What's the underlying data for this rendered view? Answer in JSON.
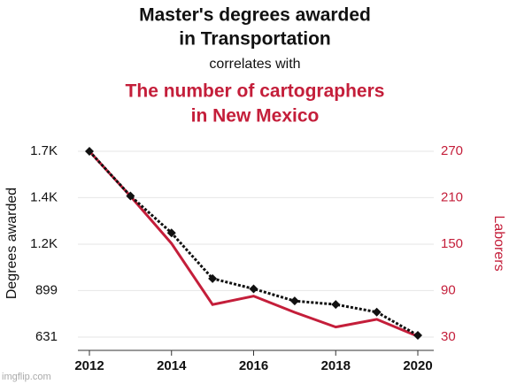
{
  "chart_data": {
    "type": "line",
    "title": [
      "Master's degrees awarded",
      "in Transportation"
    ],
    "subtitle": "correlates with",
    "title2": [
      "The number of cartographers",
      "in New Mexico"
    ],
    "watermark": "imgflip.com",
    "x": [
      2012,
      2013,
      2014,
      2015,
      2016,
      2017,
      2018,
      2019,
      2020
    ],
    "xlim": [
      2012,
      2020
    ],
    "xticks": [
      2012,
      2014,
      2016,
      2018,
      2020
    ],
    "ylim": [
      631,
      1701
    ],
    "yticks": [
      631,
      899,
      {
        "value": 1166,
        "label": "1.2K"
      },
      {
        "value": 1434,
        "label": "1.4K"
      },
      {
        "value": 1701,
        "label": "1.7K"
      }
    ],
    "y2lim": [
      30,
      270
    ],
    "y2ticks": [
      30,
      90,
      150,
      210,
      270
    ],
    "grid": true,
    "series": [
      {
        "name": "Degrees awarded",
        "color": "#111111",
        "dashed": true,
        "values": [
          1701,
          1444,
          1231,
          968,
          909,
          839,
          819,
          775,
          641
        ]
      },
      {
        "name": "Laborers",
        "color": "#c41e3a",
        "axis": "y2",
        "values": [
          270,
          212,
          151,
          72,
          83,
          62,
          43,
          53,
          31
        ]
      }
    ]
  }
}
